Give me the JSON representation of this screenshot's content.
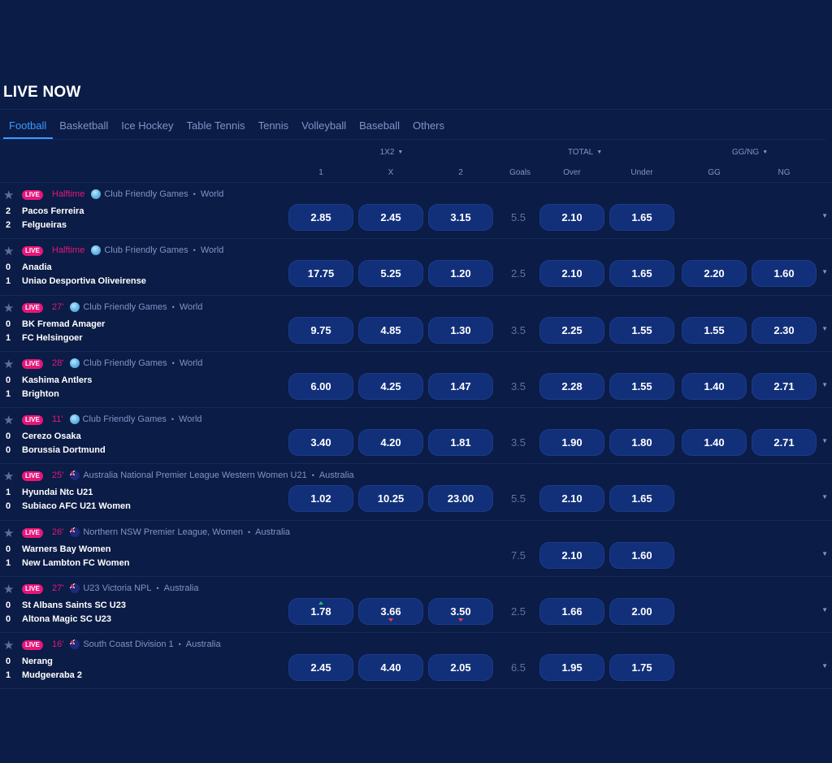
{
  "section_title": "LIVE NOW",
  "tabs": [
    "Football",
    "Basketball",
    "Ice Hockey",
    "Table Tennis",
    "Tennis",
    "Volleyball",
    "Baseball",
    "Others"
  ],
  "active_tab": 0,
  "groups": {
    "g1x2": "1X2",
    "total": "TOTAL",
    "ggng": "GG/NG"
  },
  "columns": {
    "c1": "1",
    "cx": "X",
    "c2": "2",
    "goals": "Goals",
    "over": "Over",
    "under": "Under",
    "gg": "GG",
    "ng": "NG"
  },
  "live_label": "LIVE",
  "colors": {
    "background": "#0b1c46",
    "accent": "#3d9bff",
    "live": "#e5177b",
    "odd_button": "#12307a"
  },
  "matches": [
    {
      "time": "Halftime",
      "league": "Club Friendly Games",
      "region": "World",
      "flag": "globe-icon",
      "team1": "Pacos Ferreira",
      "score1": "2",
      "team2": "Felgueiras",
      "score2": "2",
      "o1": "2.85",
      "ox": "2.45",
      "o2": "3.15",
      "goals": "5.5",
      "over": "2.10",
      "under": "1.65",
      "gg": "",
      "ng": ""
    },
    {
      "time": "Halftime",
      "league": "Club Friendly Games",
      "region": "World",
      "flag": "globe-icon",
      "team1": "Anadia",
      "score1": "0",
      "team2": "Uniao Desportiva Oliveirense",
      "score2": "1",
      "o1": "17.75",
      "ox": "5.25",
      "o2": "1.20",
      "goals": "2.5",
      "over": "2.10",
      "under": "1.65",
      "gg": "2.20",
      "ng": "1.60"
    },
    {
      "time": "27'",
      "league": "Club Friendly Games",
      "region": "World",
      "flag": "globe-icon",
      "team1": "BK Fremad Amager",
      "score1": "0",
      "team2": "FC Helsingoer",
      "score2": "1",
      "o1": "9.75",
      "ox": "4.85",
      "o2": "1.30",
      "goals": "3.5",
      "over": "2.25",
      "under": "1.55",
      "gg": "1.55",
      "ng": "2.30"
    },
    {
      "time": "28'",
      "league": "Club Friendly Games",
      "region": "World",
      "flag": "globe-icon",
      "team1": "Kashima Antlers",
      "score1": "0",
      "team2": "Brighton",
      "score2": "1",
      "o1": "6.00",
      "ox": "4.25",
      "o2": "1.47",
      "goals": "3.5",
      "over": "2.28",
      "under": "1.55",
      "gg": "1.40",
      "ng": "2.71"
    },
    {
      "time": "11'",
      "league": "Club Friendly Games",
      "region": "World",
      "flag": "globe-icon",
      "team1": "Cerezo Osaka",
      "score1": "0",
      "team2": "Borussia Dortmund",
      "score2": "0",
      "o1": "3.40",
      "ox": "4.20",
      "o2": "1.81",
      "goals": "3.5",
      "over": "1.90",
      "under": "1.80",
      "gg": "1.40",
      "ng": "2.71"
    },
    {
      "time": "25'",
      "league": "Australia National Premier League Western Women U21",
      "region": "Australia",
      "flag": "australia-flag-icon",
      "team1": "Hyundai Ntc U21",
      "score1": "1",
      "team2": "Subiaco AFC U21 Women",
      "score2": "0",
      "o1": "1.02",
      "ox": "10.25",
      "o2": "23.00",
      "goals": "5.5",
      "over": "2.10",
      "under": "1.65",
      "gg": "",
      "ng": ""
    },
    {
      "time": "26'",
      "league": "Northern NSW Premier League, Women",
      "region": "Australia",
      "flag": "australia-flag-icon",
      "team1": "Warners Bay Women",
      "score1": "0",
      "team2": "New Lambton FC Women",
      "score2": "1",
      "o1": "",
      "ox": "",
      "o2": "",
      "goals": "7.5",
      "over": "2.10",
      "under": "1.60",
      "gg": "",
      "ng": ""
    },
    {
      "time": "27'",
      "league": "U23 Victoria NPL",
      "region": "Australia",
      "flag": "australia-flag-icon",
      "team1": "St Albans Saints SC U23",
      "score1": "0",
      "team2": "Altona Magic SC U23",
      "score2": "0",
      "o1": "1.78",
      "ox": "3.66",
      "o2": "3.50",
      "goals": "2.5",
      "over": "1.66",
      "under": "2.00",
      "gg": "",
      "ng": "",
      "trend": {
        "o1": "up",
        "ox": "down",
        "o2": "down"
      }
    },
    {
      "time": "16'",
      "league": "South Coast Division 1",
      "region": "Australia",
      "flag": "australia-flag-icon",
      "team1": "Nerang",
      "score1": "0",
      "team2": "Mudgeeraba 2",
      "score2": "1",
      "o1": "2.45",
      "ox": "4.40",
      "o2": "2.05",
      "goals": "6.5",
      "over": "1.95",
      "under": "1.75",
      "gg": "",
      "ng": ""
    }
  ]
}
